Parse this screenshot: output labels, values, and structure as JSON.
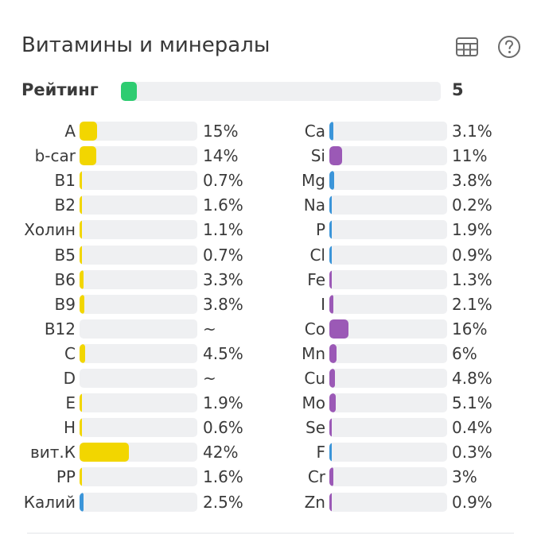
{
  "panel": {
    "title": "Витамины и минералы",
    "table_icon": "table-icon",
    "help_icon": "question-circle-icon"
  },
  "rating": {
    "label": "Рейтинг",
    "value": "5",
    "fraction": 0.05,
    "color": "#2ecc71"
  },
  "colors": {
    "vitamin": "#f2d600",
    "mineral_blue": "#3b95d9",
    "mineral_purple": "#9b59b6",
    "track": "#eff0f2"
  },
  "vitamins": [
    {
      "name": "A",
      "value": "15%",
      "pct": 15,
      "color": "#f2d600"
    },
    {
      "name": "b-car",
      "value": "14%",
      "pct": 14,
      "color": "#f2d600"
    },
    {
      "name": "B1",
      "value": "0.7%",
      "pct": 0.7,
      "color": "#f2d600"
    },
    {
      "name": "B2",
      "value": "1.6%",
      "pct": 1.6,
      "color": "#f2d600"
    },
    {
      "name": "Холин",
      "value": "1.1%",
      "pct": 1.1,
      "color": "#f2d600"
    },
    {
      "name": "B5",
      "value": "0.7%",
      "pct": 0.7,
      "color": "#f2d600"
    },
    {
      "name": "B6",
      "value": "3.3%",
      "pct": 3.3,
      "color": "#f2d600"
    },
    {
      "name": "B9",
      "value": "3.8%",
      "pct": 3.8,
      "color": "#f2d600"
    },
    {
      "name": "B12",
      "value": "~",
      "pct": 0,
      "color": "#f2d600"
    },
    {
      "name": "C",
      "value": "4.5%",
      "pct": 4.5,
      "color": "#f2d600"
    },
    {
      "name": "D",
      "value": "~",
      "pct": 0,
      "color": "#f2d600"
    },
    {
      "name": "E",
      "value": "1.9%",
      "pct": 1.9,
      "color": "#f2d600"
    },
    {
      "name": "H",
      "value": "0.6%",
      "pct": 0.6,
      "color": "#f2d600"
    },
    {
      "name": "вит.К",
      "value": "42%",
      "pct": 42,
      "color": "#f2d600"
    },
    {
      "name": "PP",
      "value": "1.6%",
      "pct": 1.6,
      "color": "#f2d600"
    },
    {
      "name": "Калий",
      "value": "2.5%",
      "pct": 2.5,
      "color": "#3b95d9"
    }
  ],
  "minerals": [
    {
      "name": "Ca",
      "value": "3.1%",
      "pct": 3.1,
      "color": "#3b95d9"
    },
    {
      "name": "Si",
      "value": "11%",
      "pct": 11,
      "color": "#9b59b6"
    },
    {
      "name": "Mg",
      "value": "3.8%",
      "pct": 3.8,
      "color": "#3b95d9"
    },
    {
      "name": "Na",
      "value": "0.2%",
      "pct": 0.2,
      "color": "#3b95d9"
    },
    {
      "name": "P",
      "value": "1.9%",
      "pct": 1.9,
      "color": "#3b95d9"
    },
    {
      "name": "Cl",
      "value": "0.9%",
      "pct": 0.9,
      "color": "#3b95d9"
    },
    {
      "name": "Fe",
      "value": "1.3%",
      "pct": 1.3,
      "color": "#9b59b6"
    },
    {
      "name": "I",
      "value": "2.1%",
      "pct": 2.1,
      "color": "#9b59b6"
    },
    {
      "name": "Co",
      "value": "16%",
      "pct": 16,
      "color": "#9b59b6"
    },
    {
      "name": "Mn",
      "value": "6%",
      "pct": 6,
      "color": "#9b59b6"
    },
    {
      "name": "Cu",
      "value": "4.8%",
      "pct": 4.8,
      "color": "#9b59b6"
    },
    {
      "name": "Mo",
      "value": "5.1%",
      "pct": 5.1,
      "color": "#9b59b6"
    },
    {
      "name": "Se",
      "value": "0.4%",
      "pct": 0.4,
      "color": "#9b59b6"
    },
    {
      "name": "F",
      "value": "0.3%",
      "pct": 0.3,
      "color": "#3b95d9"
    },
    {
      "name": "Cr",
      "value": "3%",
      "pct": 3,
      "color": "#9b59b6"
    },
    {
      "name": "Zn",
      "value": "0.9%",
      "pct": 0.9,
      "color": "#9b59b6"
    }
  ]
}
